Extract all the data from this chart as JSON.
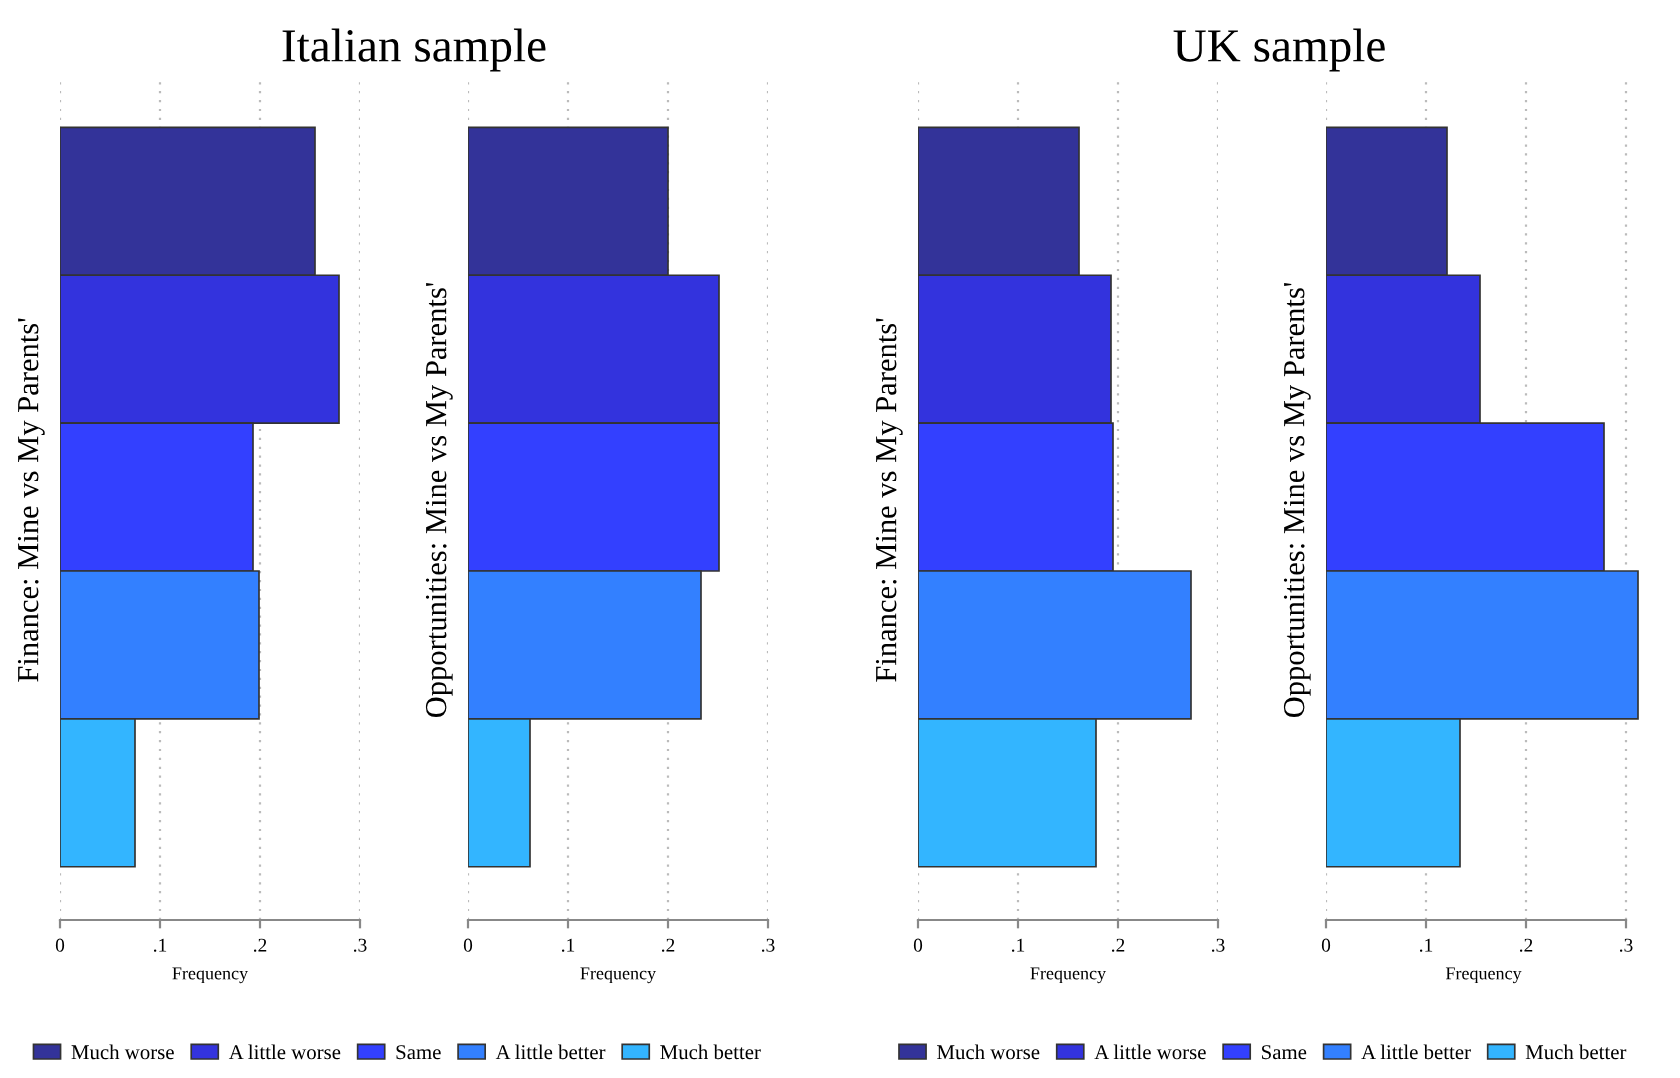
{
  "chart_data": [
    {
      "type": "bar",
      "orientation": "horizontal",
      "title": "Italian sample",
      "ylabel": "Finance: Mine vs My Parents'",
      "xlabel": "Frequency",
      "categories": [
        null,
        null,
        null,
        null,
        null
      ],
      "xlim": [
        0,
        0.3
      ],
      "xticks": [
        0,
        {
          "value": 0.1,
          "label": ".1"
        },
        {
          "value": 0.2,
          "label": ".2"
        },
        {
          "value": 0.3,
          "label": ".3"
        }
      ],
      "grid": "x",
      "legend": "bottom",
      "series": [
        {
          "name": "Much worse",
          "color": "#333399",
          "values": [
            0.255,
            null,
            null,
            null,
            null
          ]
        },
        {
          "name": "A little worse",
          "color": "#3333dd",
          "values": [
            null,
            0.279,
            null,
            null,
            null
          ]
        },
        {
          "name": "Same",
          "color": "#3340ff",
          "values": [
            null,
            null,
            0.193,
            null,
            null
          ]
        },
        {
          "name": "A little better",
          "color": "#3380ff",
          "values": [
            null,
            null,
            null,
            0.199,
            null
          ]
        },
        {
          "name": "Much better",
          "color": "#33b5ff",
          "values": [
            null,
            null,
            null,
            null,
            0.075
          ]
        }
      ]
    },
    {
      "type": "bar",
      "orientation": "horizontal",
      "ylabel": "Opportunities: Mine vs My Parents'",
      "xlabel": "Frequency",
      "categories": [
        null,
        null,
        null,
        null,
        null
      ],
      "xlim": [
        0,
        0.3
      ],
      "xticks": [
        0,
        {
          "value": 0.1,
          "label": ".1"
        },
        {
          "value": 0.2,
          "label": ".2"
        },
        {
          "value": 0.3,
          "label": ".3"
        }
      ],
      "grid": "x",
      "series": [
        {
          "color": "#333399",
          "values": [
            0.2,
            null,
            null,
            null,
            null
          ]
        },
        {
          "color": "#3333dd",
          "values": [
            null,
            0.251,
            null,
            null,
            null
          ]
        },
        {
          "color": "#3340ff",
          "values": [
            null,
            null,
            0.251,
            null,
            null
          ]
        },
        {
          "color": "#3380ff",
          "values": [
            null,
            null,
            null,
            0.233,
            null
          ]
        },
        {
          "color": "#33b5ff",
          "values": [
            null,
            null,
            null,
            null,
            0.062
          ]
        }
      ]
    },
    {
      "type": "bar",
      "orientation": "horizontal",
      "title": "UK sample",
      "ylabel": "Finance: Mine vs My Parents'",
      "xlabel": "Frequency",
      "categories": [
        null,
        null,
        null,
        null,
        null
      ],
      "xlim": [
        0,
        0.3
      ],
      "xticks": [
        0,
        {
          "value": 0.1,
          "label": ".1"
        },
        {
          "value": 0.2,
          "label": ".2"
        },
        {
          "value": 0.3,
          "label": ".3"
        }
      ],
      "grid": "x",
      "legend": "bottom",
      "series": [
        {
          "name": "Much worse",
          "color": "#333399",
          "values": [
            0.161,
            null,
            null,
            null,
            null
          ]
        },
        {
          "name": "A little worse",
          "color": "#3333dd",
          "values": [
            null,
            0.193,
            null,
            null,
            null
          ]
        },
        {
          "name": "Same",
          "color": "#3340ff",
          "values": [
            null,
            null,
            0.195,
            null,
            null
          ]
        },
        {
          "name": "A little better",
          "color": "#3380ff",
          "values": [
            null,
            null,
            null,
            0.273,
            null
          ]
        },
        {
          "name": "Much better",
          "color": "#33b5ff",
          "values": [
            null,
            null,
            null,
            null,
            0.178
          ]
        }
      ]
    },
    {
      "type": "bar",
      "orientation": "horizontal",
      "ylabel": "Opportunities: Mine vs My Parents'",
      "xlabel": "Frequency",
      "categories": [
        null,
        null,
        null,
        null,
        null
      ],
      "xlim": [
        0,
        0.315
      ],
      "xticks": [
        0,
        {
          "value": 0.1,
          "label": ".1"
        },
        {
          "value": 0.2,
          "label": ".2"
        },
        {
          "value": 0.3,
          "label": ".3"
        }
      ],
      "grid": "x",
      "series": [
        {
          "color": "#333399",
          "values": [
            0.121,
            null,
            null,
            null,
            null
          ]
        },
        {
          "color": "#3333dd",
          "values": [
            null,
            0.154,
            null,
            null,
            null
          ]
        },
        {
          "color": "#3340ff",
          "values": [
            null,
            null,
            0.278,
            null,
            null
          ]
        },
        {
          "color": "#3380ff",
          "values": [
            null,
            null,
            null,
            0.312,
            null
          ]
        },
        {
          "color": "#33b5ff",
          "values": [
            null,
            null,
            null,
            null,
            0.134
          ]
        }
      ]
    }
  ]
}
